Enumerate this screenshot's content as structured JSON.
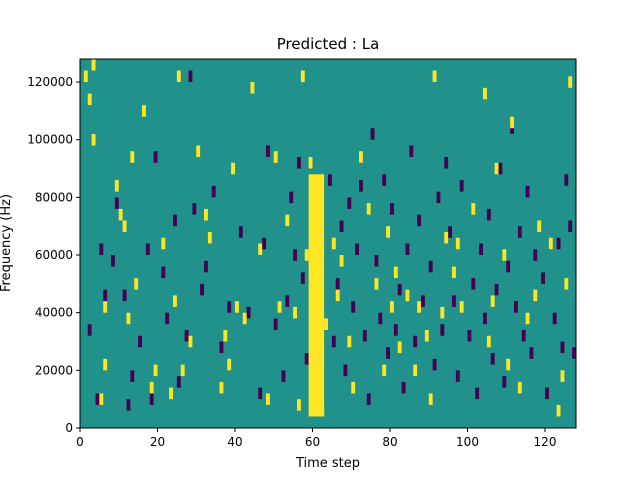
{
  "chart_data": {
    "type": "heatmap",
    "title": "Predicted : La",
    "xlabel": "Time step",
    "ylabel": "Frequency (Hz)",
    "x_range": [
      0,
      128
    ],
    "y_range": [
      0,
      128000
    ],
    "x_ticks": [
      0,
      20,
      40,
      60,
      80,
      100,
      120
    ],
    "x_tick_labels": [
      "0",
      "20",
      "40",
      "60",
      "80",
      "100",
      "120"
    ],
    "y_ticks": [
      0,
      20000,
      40000,
      60000,
      80000,
      100000,
      120000
    ],
    "y_tick_labels": [
      "0",
      "20000",
      "40000",
      "60000",
      "80000",
      "100000",
      "120000"
    ],
    "grid": false,
    "colormap": "viridis",
    "levels": {
      "low": "#440154",
      "mid": "#21918c",
      "high": "#fde725"
    },
    "background_level": "mid",
    "dense_band": {
      "level": "high",
      "time_start": 59,
      "time_end": 63,
      "freq_start": 4000,
      "freq_end": 88000
    },
    "high_cells": [
      [
        1,
        120000
      ],
      [
        2,
        112000
      ],
      [
        3,
        124000
      ],
      [
        3,
        98000
      ],
      [
        5,
        8000
      ],
      [
        6,
        40000
      ],
      [
        6,
        20000
      ],
      [
        9,
        82000
      ],
      [
        10,
        72000
      ],
      [
        11,
        68000
      ],
      [
        12,
        36000
      ],
      [
        13,
        92000
      ],
      [
        14,
        48000
      ],
      [
        16,
        108000
      ],
      [
        18,
        12000
      ],
      [
        19,
        18000
      ],
      [
        21,
        62000
      ],
      [
        23,
        10000
      ],
      [
        24,
        42000
      ],
      [
        25,
        120000
      ],
      [
        26,
        18000
      ],
      [
        28,
        28000
      ],
      [
        30,
        94000
      ],
      [
        32,
        72000
      ],
      [
        33,
        64000
      ],
      [
        36,
        12000
      ],
      [
        37,
        30000
      ],
      [
        38,
        20000
      ],
      [
        39,
        88000
      ],
      [
        40,
        40000
      ],
      [
        42,
        36000
      ],
      [
        44,
        116000
      ],
      [
        46,
        60000
      ],
      [
        48,
        8000
      ],
      [
        50,
        92000
      ],
      [
        51,
        40000
      ],
      [
        53,
        70000
      ],
      [
        55,
        38000
      ],
      [
        56,
        6000
      ],
      [
        57,
        120000
      ],
      [
        58,
        58000
      ],
      [
        59,
        90000
      ],
      [
        62,
        4000
      ],
      [
        63,
        34000
      ],
      [
        65,
        62000
      ],
      [
        66,
        44000
      ],
      [
        67,
        56000
      ],
      [
        69,
        28000
      ],
      [
        70,
        12000
      ],
      [
        72,
        92000
      ],
      [
        74,
        74000
      ],
      [
        76,
        48000
      ],
      [
        78,
        18000
      ],
      [
        79,
        66000
      ],
      [
        80,
        40000
      ],
      [
        81,
        52000
      ],
      [
        82,
        26000
      ],
      [
        84,
        44000
      ],
      [
        86,
        18000
      ],
      [
        87,
        40000
      ],
      [
        89,
        30000
      ],
      [
        90,
        8000
      ],
      [
        91,
        120000
      ],
      [
        93,
        38000
      ],
      [
        94,
        64000
      ],
      [
        96,
        52000
      ],
      [
        97,
        62000
      ],
      [
        98,
        40000
      ],
      [
        101,
        74000
      ],
      [
        104,
        114000
      ],
      [
        105,
        28000
      ],
      [
        106,
        42000
      ],
      [
        107,
        88000
      ],
      [
        109,
        58000
      ],
      [
        110,
        20000
      ],
      [
        111,
        104000
      ],
      [
        113,
        12000
      ],
      [
        115,
        36000
      ],
      [
        117,
        44000
      ],
      [
        118,
        68000
      ],
      [
        121,
        62000
      ],
      [
        123,
        4000
      ],
      [
        124,
        16000
      ],
      [
        125,
        48000
      ],
      [
        126,
        118000
      ]
    ],
    "low_cells": [
      [
        2,
        32000
      ],
      [
        4,
        8000
      ],
      [
        5,
        60000
      ],
      [
        6,
        44000
      ],
      [
        8,
        56000
      ],
      [
        9,
        76000
      ],
      [
        11,
        44000
      ],
      [
        12,
        6000
      ],
      [
        13,
        16000
      ],
      [
        15,
        28000
      ],
      [
        17,
        60000
      ],
      [
        18,
        8000
      ],
      [
        19,
        92000
      ],
      [
        21,
        52000
      ],
      [
        22,
        36000
      ],
      [
        24,
        70000
      ],
      [
        25,
        14000
      ],
      [
        27,
        30000
      ],
      [
        28,
        120000
      ],
      [
        29,
        74000
      ],
      [
        31,
        46000
      ],
      [
        32,
        54000
      ],
      [
        34,
        80000
      ],
      [
        36,
        26000
      ],
      [
        38,
        40000
      ],
      [
        41,
        66000
      ],
      [
        43,
        38000
      ],
      [
        46,
        10000
      ],
      [
        47,
        62000
      ],
      [
        48,
        94000
      ],
      [
        50,
        34000
      ],
      [
        52,
        16000
      ],
      [
        53,
        42000
      ],
      [
        54,
        78000
      ],
      [
        55,
        58000
      ],
      [
        56,
        90000
      ],
      [
        57,
        50000
      ],
      [
        58,
        22000
      ],
      [
        60,
        32000
      ],
      [
        62,
        66000
      ],
      [
        64,
        84000
      ],
      [
        65,
        28000
      ],
      [
        66,
        48000
      ],
      [
        67,
        68000
      ],
      [
        68,
        18000
      ],
      [
        69,
        76000
      ],
      [
        70,
        40000
      ],
      [
        71,
        60000
      ],
      [
        72,
        82000
      ],
      [
        73,
        30000
      ],
      [
        74,
        8000
      ],
      [
        75,
        100000
      ],
      [
        76,
        56000
      ],
      [
        77,
        36000
      ],
      [
        78,
        84000
      ],
      [
        79,
        24000
      ],
      [
        80,
        74000
      ],
      [
        81,
        32000
      ],
      [
        82,
        46000
      ],
      [
        83,
        12000
      ],
      [
        84,
        60000
      ],
      [
        85,
        94000
      ],
      [
        86,
        28000
      ],
      [
        87,
        70000
      ],
      [
        88,
        42000
      ],
      [
        90,
        54000
      ],
      [
        91,
        20000
      ],
      [
        92,
        78000
      ],
      [
        93,
        32000
      ],
      [
        94,
        90000
      ],
      [
        95,
        66000
      ],
      [
        96,
        42000
      ],
      [
        97,
        16000
      ],
      [
        98,
        82000
      ],
      [
        100,
        30000
      ],
      [
        101,
        48000
      ],
      [
        102,
        10000
      ],
      [
        103,
        60000
      ],
      [
        104,
        36000
      ],
      [
        105,
        72000
      ],
      [
        106,
        22000
      ],
      [
        107,
        46000
      ],
      [
        108,
        88000
      ],
      [
        109,
        14000
      ],
      [
        110,
        54000
      ],
      [
        111,
        102000
      ],
      [
        112,
        40000
      ],
      [
        113,
        66000
      ],
      [
        114,
        30000
      ],
      [
        115,
        80000
      ],
      [
        116,
        24000
      ],
      [
        117,
        58000
      ],
      [
        119,
        50000
      ],
      [
        120,
        10000
      ],
      [
        122,
        36000
      ],
      [
        123,
        62000
      ],
      [
        124,
        26000
      ],
      [
        125,
        84000
      ],
      [
        126,
        68000
      ],
      [
        127,
        24000
      ]
    ]
  }
}
